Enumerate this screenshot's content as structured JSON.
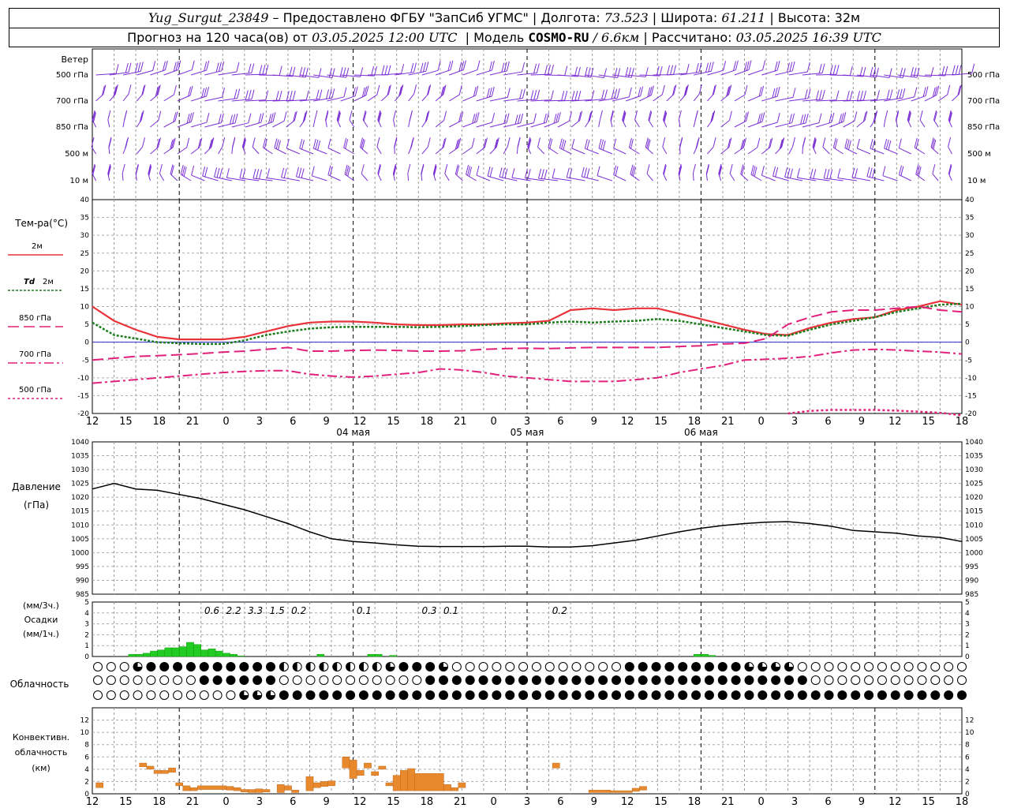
{
  "header": {
    "station": "Yug_Surgut_23849",
    "provider": "– Предоставлено ФГБУ \"ЗапСиб УГМС\"",
    "lon_label": "Долгота:",
    "lon": "73.523",
    "lat_label": "Широта:",
    "lat": "61.211",
    "alt_label": "Высота:",
    "alt": "32м",
    "forecast_label": "Прогноз на 120 часа(ов) от",
    "forecast_time": "03.05.2025 12:00 UTC",
    "model_label": "Модель",
    "model": "COSMO-RU",
    "model_res": "/ 6.6км",
    "calc_label": "Рассчитано:",
    "calc_time": "03.05.2025 16:39 UTC"
  },
  "wind_panel": {
    "title": "Ветер",
    "levels": [
      "500 гПа",
      "700 гПа",
      "850 гПа",
      "500 м",
      "10 м"
    ],
    "color": "#7b2fd4"
  },
  "temp_panel": {
    "title": "Тем-ра(°C)",
    "legend": [
      {
        "id": "t2m",
        "label": "2м",
        "color": "#e8333a"
      },
      {
        "id": "td2m",
        "label_prefix": "Td",
        "label": "2м",
        "color": "#1d7d1d"
      },
      {
        "id": "t850",
        "label": "850 гПа",
        "color": "#e0207a"
      },
      {
        "id": "t700",
        "label": "700 гПа",
        "color": "#e0207a"
      },
      {
        "id": "t500",
        "label": "500 гПа",
        "color": "#e0207a"
      }
    ]
  },
  "pressure_panel": {
    "title": "Давление",
    "unit": "(гПа)"
  },
  "precip_panel": {
    "unit_3h": "(мм/3ч.)",
    "title": "Осадки",
    "unit_1h": "(мм/1ч.)",
    "color": "#22cc22"
  },
  "cloud_panel": {
    "title": "Облачность"
  },
  "conv_panel": {
    "title_1": "Конвективн.",
    "title_2": "облачность",
    "unit": "(км)",
    "color": "#e8892e"
  },
  "chart_data": [
    {
      "type": "line",
      "name": "temperature",
      "x_hours": [
        0,
        3,
        6,
        9,
        12,
        15,
        18,
        21,
        24,
        27,
        30,
        33,
        36,
        39,
        42,
        45,
        48,
        51,
        54,
        57,
        60,
        63,
        66,
        69,
        72,
        75,
        78,
        81,
        84,
        87,
        90,
        93,
        96,
        99,
        102,
        105,
        108,
        111,
        114,
        117,
        120
      ],
      "x_tick_labels": [
        "12",
        "15",
        "18",
        "21",
        "0",
        "3",
        "6",
        "9",
        "12",
        "15",
        "18",
        "21",
        "0",
        "3",
        "6",
        "9",
        "12",
        "15",
        "18",
        "21",
        "0",
        "3",
        "6",
        "9",
        "12",
        "15",
        "18"
      ],
      "day_labels": [
        {
          "hour": 36,
          "label": "04 мая"
        },
        {
          "hour": 60,
          "label": "05 мая"
        },
        {
          "hour": 84,
          "label": "06 мая"
        }
      ],
      "ylim": [
        -20,
        40
      ],
      "yticks": [
        -20,
        -15,
        -10,
        -5,
        0,
        5,
        10,
        15,
        20,
        25,
        30,
        35,
        40
      ],
      "series": [
        {
          "id": "t2m",
          "values": [
            10,
            6,
            3.5,
            1.5,
            0.8,
            0.8,
            0.8,
            1.5,
            3,
            4.5,
            5.5,
            5.8,
            5.8,
            5.5,
            5,
            4.8,
            4.8,
            5,
            5,
            5.3,
            5.5,
            6,
            9,
            9.5,
            9,
            9.5,
            9.5,
            8,
            6.5,
            5,
            3.5,
            2.3,
            2,
            4,
            5.5,
            6.5,
            7,
            9,
            10,
            11.5,
            10.5
          ]
        },
        {
          "id": "td2m",
          "values": [
            5.5,
            2,
            1,
            0,
            -0.3,
            -0.5,
            -0.5,
            0.5,
            2,
            3,
            3.8,
            4.2,
            4.3,
            4.3,
            4.3,
            4.2,
            4.3,
            4.5,
            4.8,
            5,
            5,
            5.5,
            5.8,
            5.5,
            5.8,
            6,
            6.5,
            6,
            5,
            4,
            3,
            2,
            1.8,
            3.5,
            5,
            6,
            7,
            8.5,
            9.5,
            10.5,
            10.8
          ]
        },
        {
          "id": "t850",
          "values": [
            -5,
            -4.5,
            -4,
            -3.8,
            -3.5,
            -3.2,
            -2.8,
            -2.5,
            -2,
            -1.5,
            -2.5,
            -2.5,
            -2.3,
            -2.2,
            -2.3,
            -2.5,
            -2.5,
            -2.4,
            -2,
            -1.8,
            -1.7,
            -1.8,
            -1.6,
            -1.5,
            -1.5,
            -1.5,
            -1.5,
            -1.2,
            -1,
            -0.5,
            -0.3,
            1,
            5,
            7,
            8.5,
            9,
            9,
            9.5,
            10,
            9,
            8.5
          ]
        },
        {
          "id": "t700",
          "values": [
            -11.5,
            -11,
            -10.5,
            -10,
            -9.5,
            -9,
            -8.5,
            -8.2,
            -8,
            -8,
            -9,
            -9.5,
            -9.8,
            -9.5,
            -9,
            -8.5,
            -7.5,
            -7.8,
            -8.5,
            -9.5,
            -10,
            -10.5,
            -11,
            -11,
            -11,
            -10.5,
            -10,
            -8.5,
            -7.5,
            -6.5,
            -5,
            -4.8,
            -4.5,
            -4,
            -3,
            -2.2,
            -2,
            -2.2,
            -2.5,
            -2.8,
            -3.3
          ]
        },
        {
          "id": "t500",
          "values": [
            null,
            null,
            null,
            null,
            null,
            null,
            null,
            null,
            null,
            null,
            null,
            null,
            null,
            null,
            null,
            null,
            null,
            null,
            null,
            null,
            null,
            null,
            null,
            null,
            null,
            null,
            null,
            null,
            null,
            null,
            null,
            null,
            -20,
            -19.3,
            -19,
            -19,
            -19,
            -19.2,
            -19.5,
            -19.8,
            -20.5
          ]
        }
      ]
    },
    {
      "type": "line",
      "name": "pressure",
      "x_hours": [
        0,
        3,
        6,
        9,
        12,
        15,
        18,
        21,
        24,
        27,
        30,
        33,
        36,
        39,
        42,
        45,
        48,
        51,
        54,
        57,
        60,
        63,
        66,
        69,
        72,
        75,
        78,
        81,
        84,
        87,
        90,
        93,
        96,
        99,
        102,
        105,
        108,
        111,
        114,
        117,
        120
      ],
      "ylim": [
        985,
        1040
      ],
      "yticks": [
        985,
        990,
        995,
        1000,
        1005,
        1010,
        1015,
        1020,
        1025,
        1030,
        1035,
        1040
      ],
      "values": [
        1023,
        1025,
        1023,
        1022.5,
        1021,
        1019.5,
        1017.5,
        1015.5,
        1013,
        1010.5,
        1007.5,
        1005,
        1004,
        1003.5,
        1002.8,
        1002.3,
        1002.2,
        1002.2,
        1002.2,
        1002.3,
        1002.3,
        1002,
        1002,
        1002.5,
        1003.5,
        1004.5,
        1006,
        1007.5,
        1008.8,
        1009.8,
        1010.5,
        1011,
        1011.2,
        1010.5,
        1009.5,
        1008,
        1007.5,
        1007,
        1006,
        1005.5,
        1004
      ]
    },
    {
      "type": "bar",
      "name": "precipitation",
      "unit": "мм/1ч",
      "ylim": [
        0,
        5
      ],
      "yticks": [
        0,
        1,
        2,
        3,
        4,
        5
      ],
      "bars": [
        {
          "h": 5.5,
          "v": 0.2
        },
        {
          "h": 6.5,
          "v": 0.2
        },
        {
          "h": 7.5,
          "v": 0.3
        },
        {
          "h": 8.5,
          "v": 0.5
        },
        {
          "h": 9.5,
          "v": 0.6
        },
        {
          "h": 10.5,
          "v": 0.8
        },
        {
          "h": 11.5,
          "v": 0.8
        },
        {
          "h": 12.5,
          "v": 0.9
        },
        {
          "h": 13.5,
          "v": 1.3
        },
        {
          "h": 14.5,
          "v": 1.1
        },
        {
          "h": 15.5,
          "v": 0.6
        },
        {
          "h": 16.5,
          "v": 0.7
        },
        {
          "h": 17.5,
          "v": 0.5
        },
        {
          "h": 18.5,
          "v": 0.3
        },
        {
          "h": 19.5,
          "v": 0.2
        },
        {
          "h": 20.5,
          "v": 0.05
        },
        {
          "h": 31.5,
          "v": 0.2
        },
        {
          "h": 38.5,
          "v": 0.2
        },
        {
          "h": 39.5,
          "v": 0.2
        },
        {
          "h": 41.5,
          "v": 0.1
        },
        {
          "h": 83.5,
          "v": 0.2
        },
        {
          "h": 84.5,
          "v": 0.2
        },
        {
          "h": 85.5,
          "v": 0.1
        }
      ],
      "labels_3h": [
        {
          "h": 16.5,
          "text": "0.6"
        },
        {
          "h": 19.5,
          "text": "2.2"
        },
        {
          "h": 22.5,
          "text": "3.3"
        },
        {
          "h": 25.5,
          "text": "1.5"
        },
        {
          "h": 28.5,
          "text": "0.2"
        },
        {
          "h": 37.5,
          "text": "0.1"
        },
        {
          "h": 46.5,
          "text": "0.3"
        },
        {
          "h": 49.5,
          "text": "0.1"
        },
        {
          "h": 64.5,
          "text": "0.2"
        }
      ]
    },
    {
      "type": "table",
      "name": "cloudiness",
      "levels": [
        "high",
        "middle",
        "low"
      ],
      "codes_legend": "0=clear,1=1/4,2=1/2,3=3/4,4=overcast",
      "high": "000000033334444444444444444444444443432222222222222222222222234444444444300000000000000000000000000000000000044444444444444444444444433333333333000000000000000000000000000000000000",
      "middle": "000000000000000000000444444444444444440000000000000000000000000000004444444444444444444444444444444444444444444444444444444444444444444444444444444000000000000000000000000000000000",
      "low": "000000000000000000000000000000333333333444444444444444444444444444444444444444444444444444444444444444444444444444444444444444444444444444444444444444444444444444444444444444444444"
    },
    {
      "type": "bar",
      "name": "convective_cloud",
      "unit": "км",
      "ylim": [
        0,
        14
      ],
      "yticks": [
        0,
        2,
        4,
        6,
        8,
        10,
        12
      ],
      "bars": [
        {
          "h0": 0.5,
          "h1": 1.5,
          "b": 1.0,
          "t": 1.8
        },
        {
          "h0": 6.5,
          "h1": 7.5,
          "b": 4.4,
          "t": 5.0
        },
        {
          "h0": 7.5,
          "h1": 8.5,
          "b": 4.0,
          "t": 4.5
        },
        {
          "h0": 8.5,
          "h1": 9.5,
          "b": 3.3,
          "t": 3.8
        },
        {
          "h0": 9.5,
          "h1": 10.5,
          "b": 3.3,
          "t": 3.8
        },
        {
          "h0": 10.5,
          "h1": 11.5,
          "b": 3.5,
          "t": 4.2
        },
        {
          "h0": 11.5,
          "h1": 12.5,
          "b": 1.3,
          "t": 1.8
        },
        {
          "h0": 12.5,
          "h1": 13.5,
          "b": 0.5,
          "t": 1.3
        },
        {
          "h0": 13.5,
          "h1": 14.5,
          "b": 0.5,
          "t": 1.0
        },
        {
          "h0": 14.5,
          "h1": 18.5,
          "b": 0.7,
          "t": 1.3
        },
        {
          "h0": 18.5,
          "h1": 19.5,
          "b": 0.6,
          "t": 1.2
        },
        {
          "h0": 19.5,
          "h1": 20.5,
          "b": 0.5,
          "t": 1.0
        },
        {
          "h0": 20.5,
          "h1": 21.5,
          "b": 0.3,
          "t": 0.7
        },
        {
          "h0": 21.5,
          "h1": 22.5,
          "b": 0.2,
          "t": 0.7
        },
        {
          "h0": 22.5,
          "h1": 23.5,
          "b": 0.2,
          "t": 0.8
        },
        {
          "h0": 23.5,
          "h1": 24.5,
          "b": 0.3,
          "t": 0.7
        },
        {
          "h0": 25.5,
          "h1": 26.5,
          "b": 0.2,
          "t": 1.5
        },
        {
          "h0": 26.5,
          "h1": 27.5,
          "b": 0.6,
          "t": 1.3
        },
        {
          "h0": 27.5,
          "h1": 28.5,
          "b": 0.2,
          "t": 0.6
        },
        {
          "h0": 29.5,
          "h1": 30.5,
          "b": 0.5,
          "t": 2.8
        },
        {
          "h0": 30.5,
          "h1": 31.5,
          "b": 1.0,
          "t": 1.8
        },
        {
          "h0": 31.5,
          "h1": 32.5,
          "b": 1.2,
          "t": 2.0
        },
        {
          "h0": 32.5,
          "h1": 33.5,
          "b": 1.3,
          "t": 2.1
        },
        {
          "h0": 34.5,
          "h1": 35.5,
          "b": 4.2,
          "t": 6.0
        },
        {
          "h0": 35.5,
          "h1": 36.5,
          "b": 2.5,
          "t": 5.5
        },
        {
          "h0": 36.5,
          "h1": 37.5,
          "b": 3.0,
          "t": 3.8
        },
        {
          "h0": 37.5,
          "h1": 38.5,
          "b": 4.2,
          "t": 5.0
        },
        {
          "h0": 38.5,
          "h1": 39.5,
          "b": 3.0,
          "t": 3.6
        },
        {
          "h0": 39.5,
          "h1": 40.5,
          "b": 4.0,
          "t": 4.5
        },
        {
          "h0": 40.5,
          "h1": 41.5,
          "b": 1.3,
          "t": 1.8
        },
        {
          "h0": 41.5,
          "h1": 42.5,
          "b": 0.5,
          "t": 3.0
        },
        {
          "h0": 42.5,
          "h1": 43.5,
          "b": 0.5,
          "t": 3.8
        },
        {
          "h0": 43.5,
          "h1": 44.5,
          "b": 0.5,
          "t": 4.1
        },
        {
          "h0": 44.5,
          "h1": 48.5,
          "b": 0.5,
          "t": 3.3
        },
        {
          "h0": 48.5,
          "h1": 49.5,
          "b": 0.5,
          "t": 1.5
        },
        {
          "h0": 49.5,
          "h1": 50.5,
          "b": 0.5,
          "t": 1.0
        },
        {
          "h0": 50.5,
          "h1": 51.5,
          "b": 1.0,
          "t": 1.8
        },
        {
          "h0": 63.5,
          "h1": 64.5,
          "b": 4.2,
          "t": 5.0
        },
        {
          "h0": 68.5,
          "h1": 71.5,
          "b": 0.2,
          "t": 0.6
        },
        {
          "h0": 71.5,
          "h1": 74.5,
          "b": 0.2,
          "t": 0.5
        },
        {
          "h0": 74.5,
          "h1": 75.5,
          "b": 0.4,
          "t": 0.9
        },
        {
          "h0": 75.5,
          "h1": 76.5,
          "b": 0.6,
          "t": 1.2
        }
      ]
    }
  ]
}
